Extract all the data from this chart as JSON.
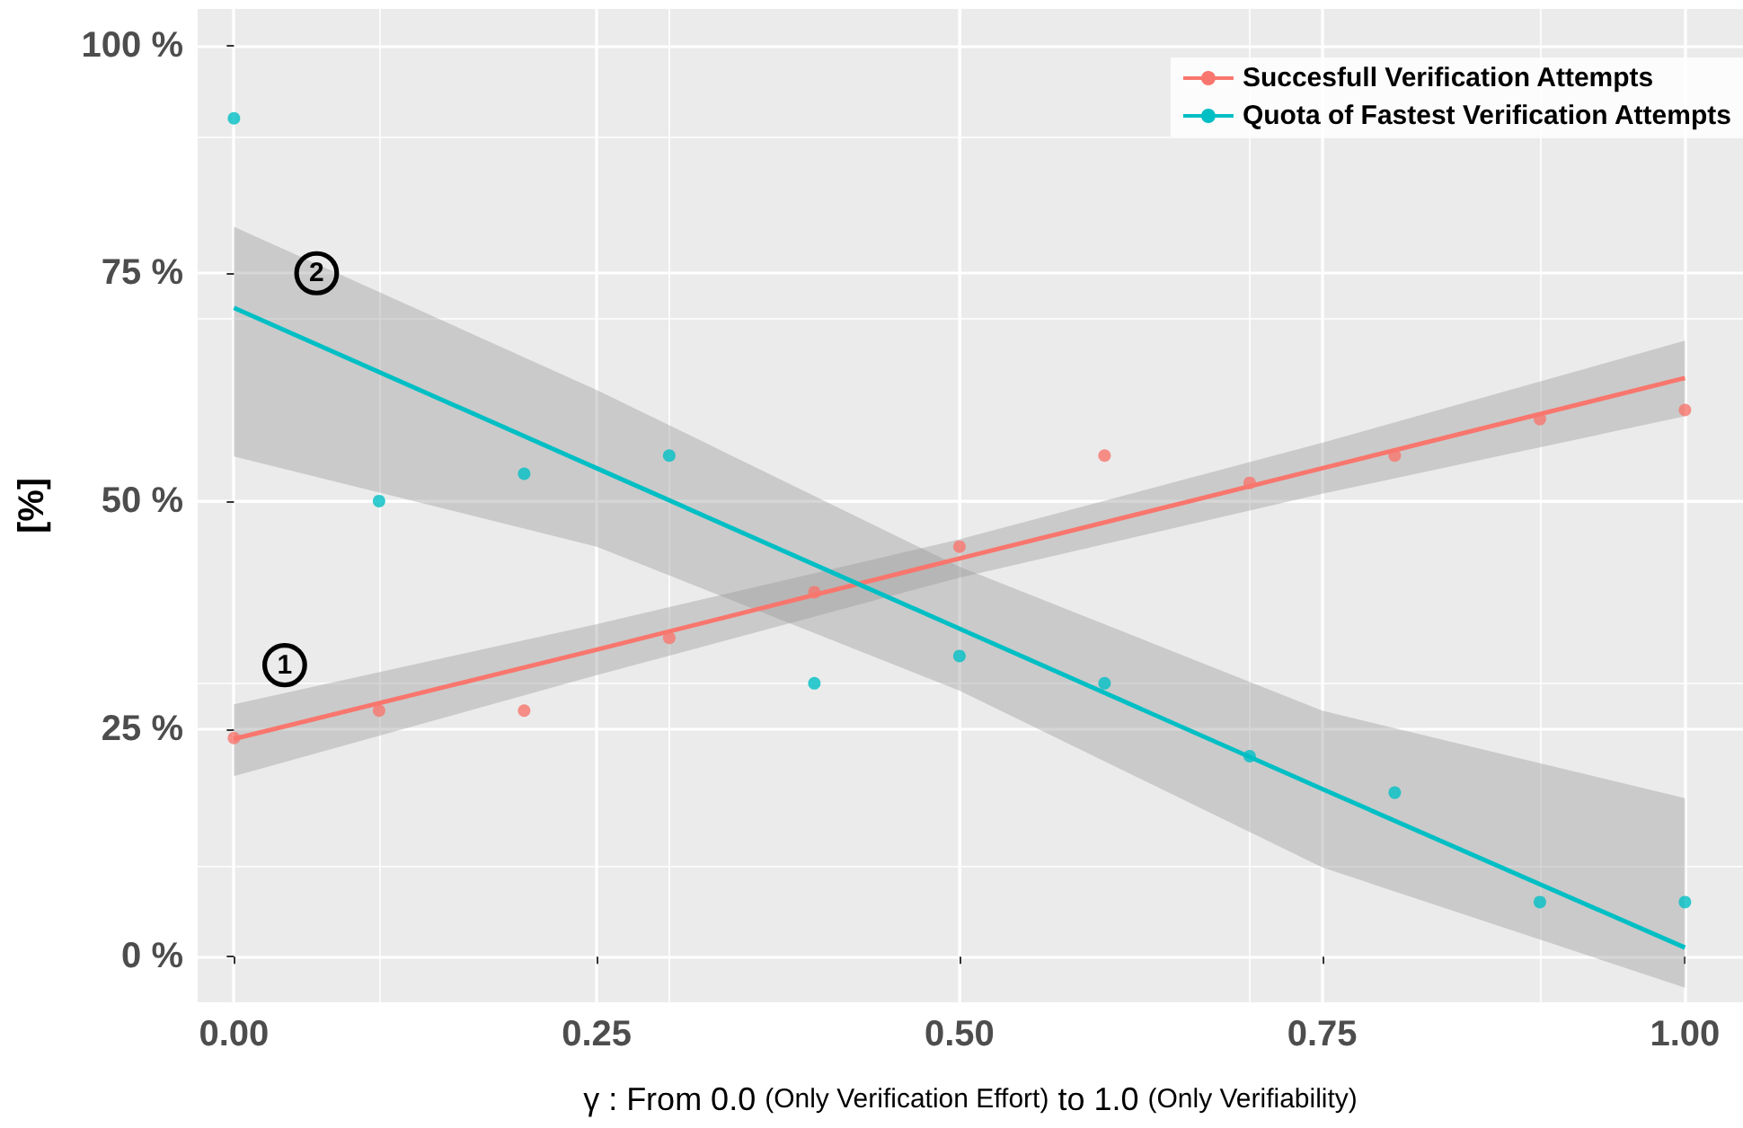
{
  "chart_data": {
    "type": "scatter",
    "xlabel": "γ : From 0.0 (Only Verification Effort) to 1.0 (Only Verifiability)",
    "ylabel": "[%]",
    "x": [
      0,
      0.1,
      0.2,
      0.3,
      0.4,
      0.5,
      0.6,
      0.7,
      0.8,
      0.9,
      1.0
    ],
    "series": [
      {
        "color": "#f8766d",
        "values": [
          24,
          27,
          27,
          35,
          40,
          45,
          55,
          52,
          55,
          59,
          60
        ]
      },
      {
        "color": "#00bfc4",
        "values": [
          92,
          50,
          53,
          55,
          30,
          33,
          30,
          22,
          18,
          6,
          6
        ]
      },
      {
        "type": "line",
        "name": "Succesfull Verification Attempts",
        "color": "#f8766d",
        "x": [
          0,
          0.25,
          0.5,
          0.75,
          1.0
        ],
        "values": [
          23.9,
          33.7,
          43.7,
          53.6,
          63.5
        ],
        "lower": [
          19.8,
          30.9,
          41.6,
          50.8,
          59.3
        ],
        "upper": [
          27.7,
          36.5,
          45.8,
          56.4,
          67.6
        ]
      },
      {
        "type": "line",
        "name": "Quota of Fastest Verification Attempts",
        "color": "#00bfc4",
        "x": [
          0,
          0.25,
          0.5,
          0.75,
          1.0
        ],
        "values": [
          71.2,
          53.6,
          36,
          18.4,
          1.0
        ],
        "lower": [
          54.9,
          45,
          29.2,
          9.8,
          -3.4
        ],
        "upper": [
          80.1,
          62.2,
          42.8,
          27,
          17.4
        ]
      }
    ],
    "annotations": [
      {
        "text": "1",
        "x": 0.035,
        "y": 32
      },
      {
        "text": "2",
        "x": 0.057,
        "y": 75
      }
    ],
    "xlim": [
      -0.025,
      1.04
    ],
    "ylim": [
      -5,
      104
    ],
    "xticks": [
      {
        "value": 0,
        "label": "0.00"
      },
      {
        "value": 0.25,
        "label": "0.25"
      },
      {
        "value": 0.5,
        "label": "0.50"
      },
      {
        "value": 0.75,
        "label": "0.75"
      },
      {
        "value": 1,
        "label": "1.00"
      }
    ],
    "yticks": [
      {
        "value": 0,
        "label": "0 %"
      },
      {
        "value": 25,
        "label": "25 %"
      },
      {
        "value": 50,
        "label": "50 %"
      },
      {
        "value": 75,
        "label": "75 %"
      },
      {
        "value": 100,
        "label": "100 %"
      }
    ],
    "grid": true,
    "legend": "top right",
    "line_style": "solid"
  }
}
